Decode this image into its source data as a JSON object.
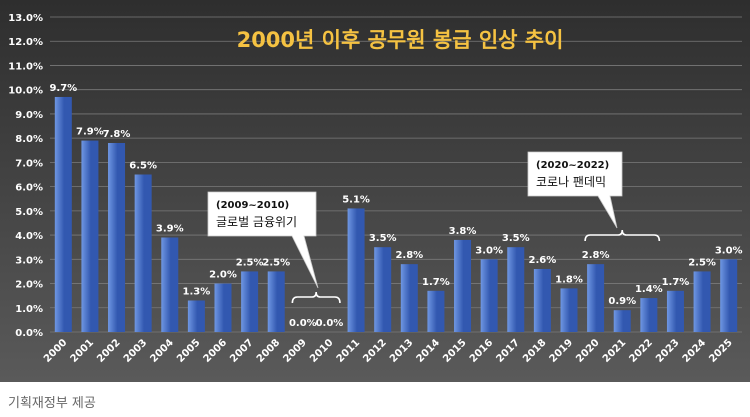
{
  "caption": "기획재정부 제공",
  "chart_data": {
    "type": "bar",
    "title": "2000년 이후 공무원 봉급 인상 추이",
    "xlabel": "",
    "ylabel": "",
    "ylim": [
      0,
      13
    ],
    "grid": true,
    "legend": "none",
    "y_ticks": [
      "0.0%",
      "1.0%",
      "2.0%",
      "3.0%",
      "4.0%",
      "5.0%",
      "6.0%",
      "7.0%",
      "8.0%",
      "9.0%",
      "10.0%",
      "11.0%",
      "12.0%",
      "13.0%"
    ],
    "categories": [
      "2000",
      "2001",
      "2002",
      "2003",
      "2004",
      "2005",
      "2006",
      "2007",
      "2008",
      "2009",
      "2010",
      "2011",
      "2012",
      "2013",
      "2014",
      "2015",
      "2016",
      "2017",
      "2018",
      "2019",
      "2020",
      "2021",
      "2022",
      "2023",
      "2024",
      "2025"
    ],
    "values": [
      9.7,
      7.9,
      7.8,
      6.5,
      3.9,
      1.3,
      2.0,
      2.5,
      2.5,
      0.0,
      0.0,
      5.1,
      3.5,
      2.8,
      1.7,
      3.8,
      3.0,
      3.5,
      2.6,
      1.8,
      2.8,
      0.9,
      1.4,
      1.7,
      2.5,
      3.0
    ],
    "value_labels": [
      "9.7%",
      "7.9%",
      "7.8%",
      "6.5%",
      "3.9%",
      "1.3%",
      "2.0%",
      "2.5%",
      "2.5%",
      "0.0%",
      "0.0%",
      "5.1%",
      "3.5%",
      "2.8%",
      "1.7%",
      "3.8%",
      "3.0%",
      "3.5%",
      "2.6%",
      "1.8%",
      "2.8%",
      "0.9%",
      "1.4%",
      "1.7%",
      "2.5%",
      "3.0%"
    ],
    "annotations": [
      {
        "period": "(2009~2010)",
        "text": "글로벌 금융위기",
        "from": "2009",
        "to": "2010"
      },
      {
        "period": "(2020~2022)",
        "text": "코로나 팬데믹",
        "from": "2020",
        "to": "2022"
      }
    ],
    "colors": {
      "background_top": "#2e2e2e",
      "background_bottom": "#5a5a5a",
      "bar_light": "#6f97e3",
      "bar_dark": "#3258b0",
      "title": "#f5c242",
      "text": "#ffffff",
      "grid": "#7a7a7a",
      "callout_bg": "#ffffff",
      "callout_text": "#111111"
    }
  }
}
